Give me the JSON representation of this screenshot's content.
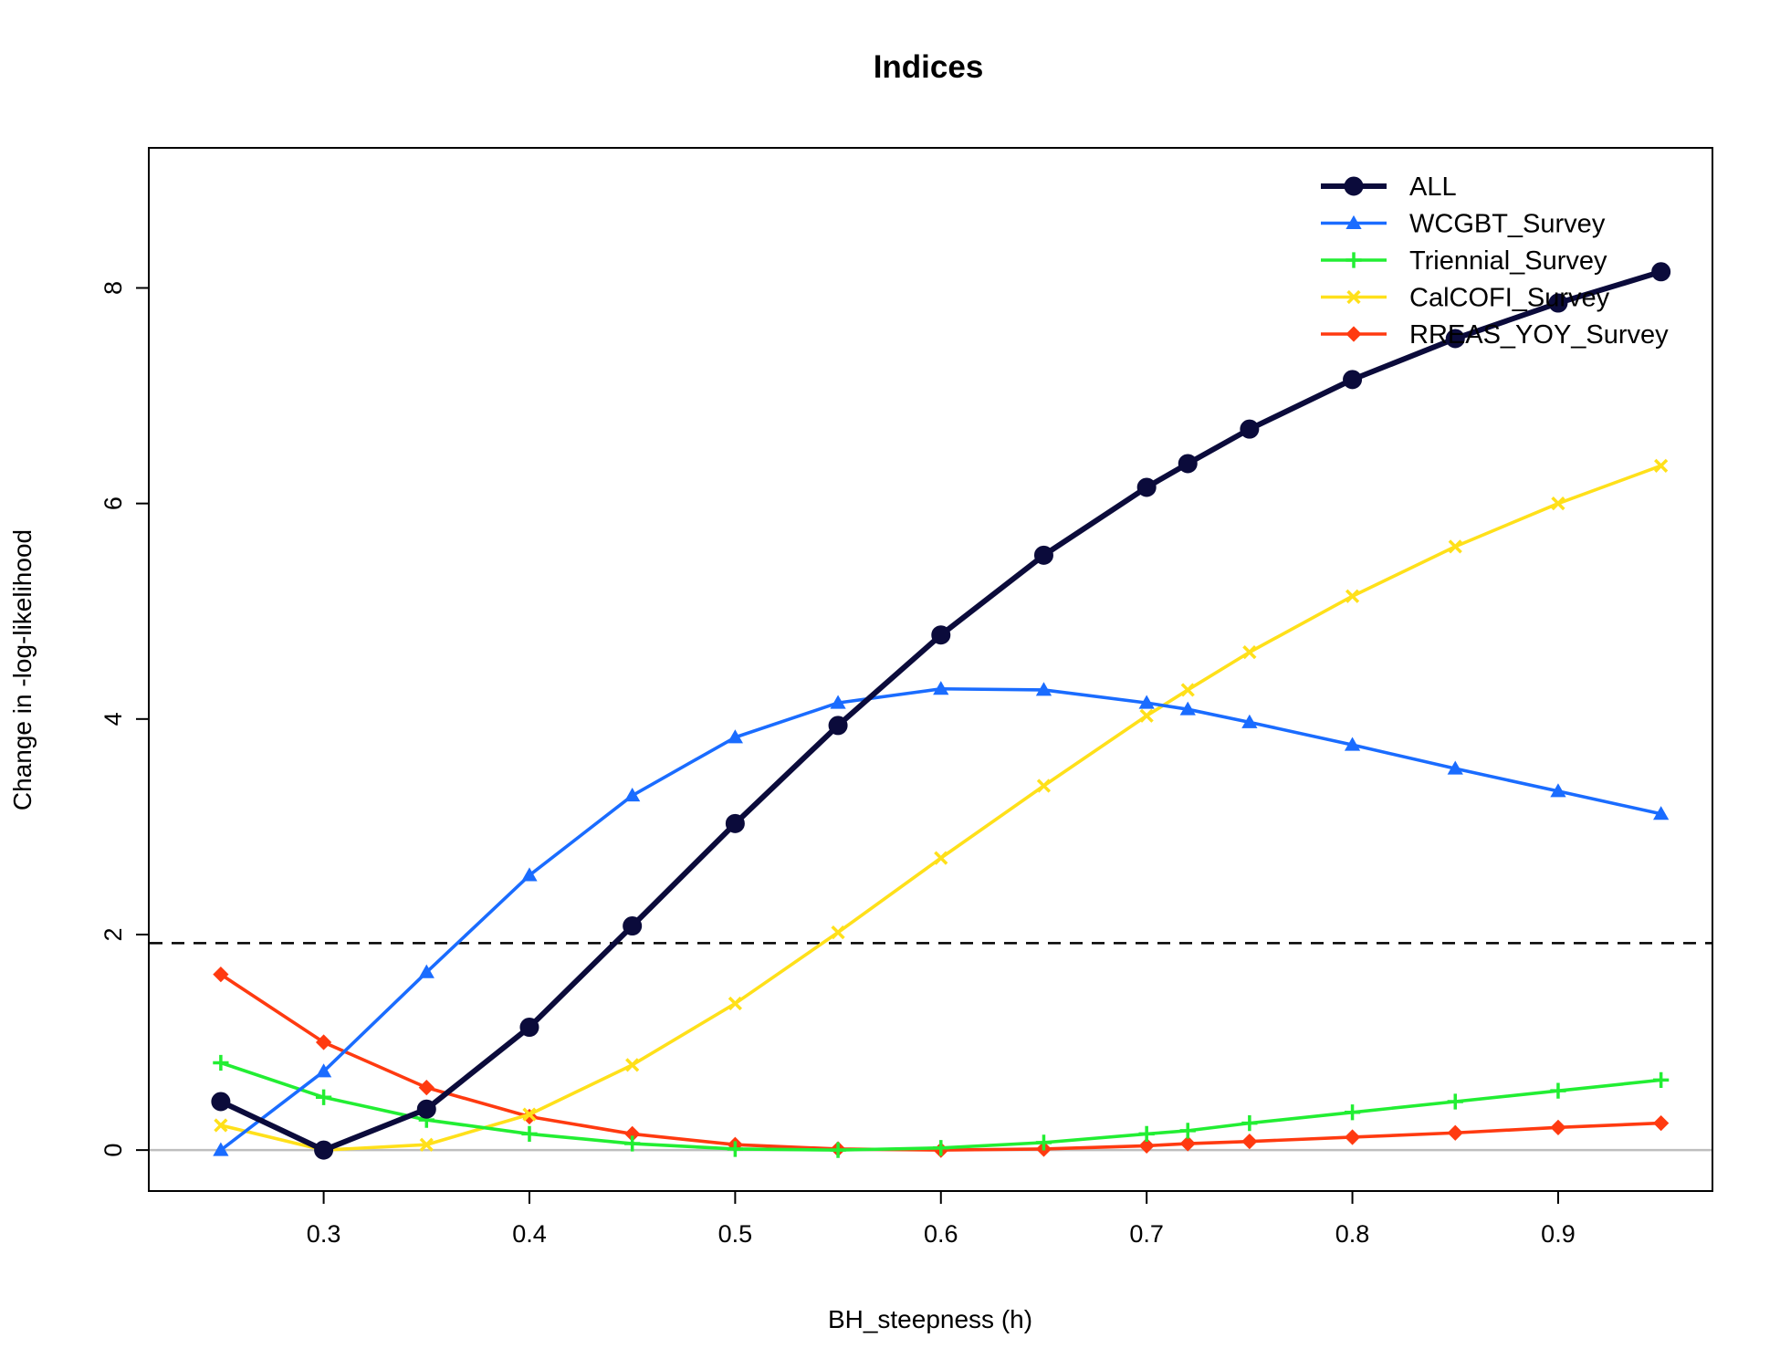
{
  "chart_data": {
    "type": "line",
    "title": "Indices",
    "xlabel": "BH_steepness (h)",
    "ylabel": "Change in -log-likelihood",
    "xlim": [
      0.215,
      0.975
    ],
    "ylim": [
      -0.38,
      9.3
    ],
    "x_ticks": [
      0.3,
      0.4,
      0.5,
      0.6,
      0.7,
      0.8,
      0.9
    ],
    "y_ticks": [
      0,
      2,
      4,
      6,
      8
    ],
    "x": [
      0.25,
      0.3,
      0.35,
      0.4,
      0.45,
      0.5,
      0.55,
      0.6,
      0.65,
      0.7,
      0.72,
      0.75,
      0.8,
      0.85,
      0.9,
      0.95
    ],
    "reference_lines": [
      {
        "y": 1.92,
        "style": "dashed",
        "color": "#000000"
      },
      {
        "y": 0,
        "style": "solid",
        "color": "#bebebe"
      }
    ],
    "legend_position": "top-right",
    "series": [
      {
        "name": "ALL",
        "color": "#0b0b3b",
        "marker": "circle",
        "line_width": "thick",
        "values": [
          0.45,
          0.0,
          0.38,
          1.14,
          2.08,
          3.03,
          3.94,
          4.78,
          5.52,
          6.15,
          6.37,
          6.69,
          7.15,
          7.53,
          7.86,
          8.15
        ]
      },
      {
        "name": "WCGBT_Survey",
        "color": "#1a6cff",
        "marker": "triangle",
        "line_width": "normal",
        "values": [
          0.0,
          0.73,
          1.65,
          2.55,
          3.29,
          3.83,
          4.15,
          4.28,
          4.27,
          4.15,
          4.09,
          3.97,
          3.76,
          3.54,
          3.33,
          3.12
        ]
      },
      {
        "name": "Triennial_Survey",
        "color": "#22ee33",
        "marker": "plus",
        "line_width": "normal",
        "values": [
          0.81,
          0.49,
          0.28,
          0.15,
          0.06,
          0.01,
          0.0,
          0.02,
          0.07,
          0.15,
          0.18,
          0.25,
          0.35,
          0.45,
          0.55,
          0.65
        ]
      },
      {
        "name": "CalCOFI_Survey",
        "color": "#ffe01a",
        "marker": "x",
        "line_width": "normal",
        "values": [
          0.23,
          0.0,
          0.05,
          0.33,
          0.79,
          1.36,
          2.02,
          2.71,
          3.38,
          4.03,
          4.27,
          4.62,
          5.14,
          5.6,
          6.0,
          6.35
        ]
      },
      {
        "name": "RREAS_YOY_Survey",
        "color": "#ff3a10",
        "marker": "diamond",
        "line_width": "normal",
        "values": [
          1.63,
          1.0,
          0.58,
          0.31,
          0.15,
          0.05,
          0.01,
          0.0,
          0.01,
          0.04,
          0.06,
          0.08,
          0.12,
          0.16,
          0.21,
          0.25
        ]
      }
    ]
  }
}
